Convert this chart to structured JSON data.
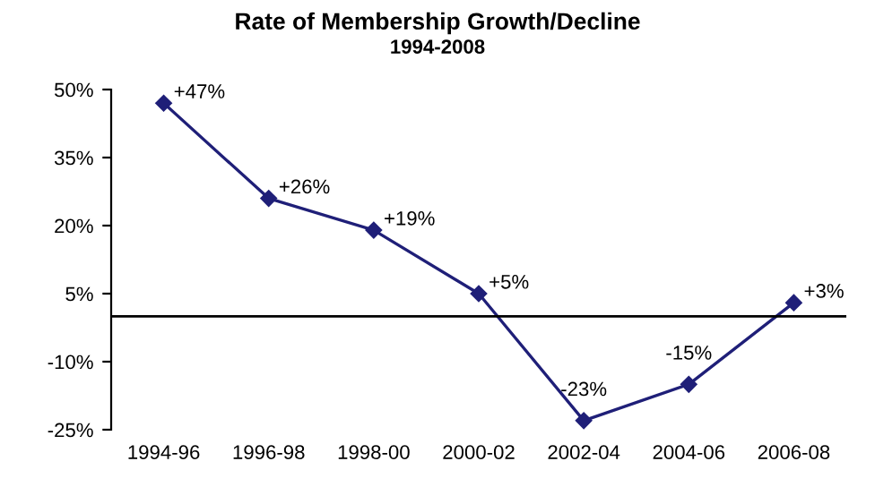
{
  "chart_data": {
    "type": "line",
    "title": "Rate of Membership Growth/Decline",
    "subtitle": "1994-2008",
    "categories": [
      "1994-96",
      "1996-98",
      "1998-00",
      "2000-02",
      "2002-04",
      "2004-06",
      "2006-08"
    ],
    "series": [
      {
        "color": "#1f1f78",
        "values": [
          47,
          26,
          19,
          5,
          -23,
          -15,
          3
        ],
        "value_labels": [
          "+47%",
          "+26%",
          "+19%",
          "+5%",
          "-23%",
          "-15%",
          "+3%"
        ]
      }
    ],
    "ylim": [
      -25,
      50
    ],
    "yticks": [
      {
        "value": -25,
        "label": "-25%"
      },
      {
        "value": -10,
        "label": "-10%"
      },
      {
        "value": 5,
        "label": "5%"
      },
      {
        "value": 20,
        "label": "20%"
      },
      {
        "value": 35,
        "label": "35%"
      },
      {
        "value": 50,
        "label": "50%"
      }
    ],
    "ref_lines": [
      {
        "axis": "y",
        "value": 0,
        "color": "#000000"
      }
    ],
    "marker": "diamond",
    "line_style": "solid",
    "grid": false,
    "legend": false
  }
}
